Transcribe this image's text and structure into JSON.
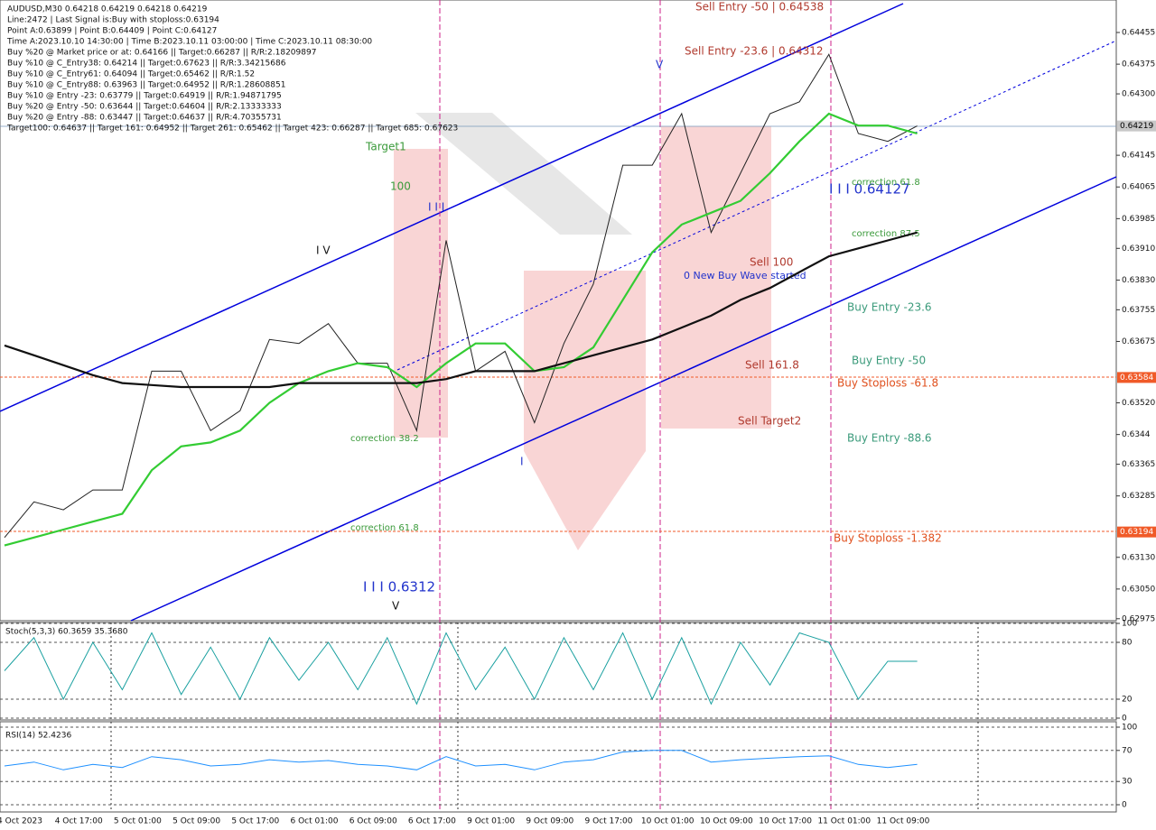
{
  "info_lines": [
    "AUDUSD,M30  0.64218 0.64219 0.64218 0.64219",
    "Line:2472 | Last Signal is:Buy with stoploss:0.63194",
    "Point A:0.63899 | Point B:0.64409 | Point C:0.64127",
    "Time A:2023.10.10 14:30:00 | Time B:2023.10.11 03:00:00 | Time C:2023.10.11 08:30:00",
    "Buy %20 @ Market price or at: 0.64166 || Target:0.66287 || R/R:2.18209897",
    "Buy %10 @ C_Entry38: 0.64214 || Target:0.67623 || R/R:3.34215686",
    "Buy %10 @ C_Entry61: 0.64094 || Target:0.65462 || R/R:1.52",
    "Buy %10 @ C_Entry88: 0.63963 || Target:0.64952 || R/R:1.28608851",
    "Buy %10 @ Entry -23: 0.63779 || Target:0.64919 || R/R:1.94871795",
    "Buy %20 @ Entry -50: 0.63644 || Target:0.64604 || R/R:2.13333333",
    "Buy %20 @ Entry -88: 0.63447 || Target:0.64637 || R/R:4.70355731",
    "Target100: 0.64637 || Target 161: 0.64952 || Target 261: 0.65462 || Target 423: 0.66287 || Target 685: 0.67623"
  ],
  "annotations": [
    "Sell Entry -50 | 0.64538",
    "Sell Entry -23.6 | 0.64312",
    "Target1",
    "100",
    "I I I 0.64127",
    "correction 61.8",
    "correction 87.5",
    "Sell 100",
    "0 New Buy Wave started",
    "Buy Entry -23.6",
    "Buy Entry -50",
    "Sell 161.8",
    "Buy Stoploss -61.8",
    "Sell Target2",
    "Buy Entry -88.6",
    "correction 38.2",
    "correction 61.8",
    "Buy Stoploss -1.382",
    "I I I 0.6312",
    "I V",
    "I I I",
    "V",
    "I",
    "V"
  ],
  "chart_data": [
    {
      "type": "line",
      "categories": [
        "4 Oct 2023",
        null,
        "4 Oct 17:00",
        null,
        "5 Oct 01:00",
        null,
        "5 Oct 09:00",
        null,
        "5 Oct 17:00",
        null,
        "6 Oct 01:00",
        null,
        "6 Oct 09:00",
        null,
        "6 Oct 17:00",
        null,
        "9 Oct 01:00",
        null,
        "9 Oct 09:00",
        null,
        "9 Oct 17:00",
        null,
        "10 Oct 01:00",
        null,
        "10 Oct 09:00",
        null,
        "10 Oct 17:00",
        null,
        "11 Oct 01:00",
        null,
        "11 Oct 09:00",
        null
      ],
      "series": [
        {
          "name": "AUDUSD",
          "color": "#222222",
          "values": [
            0.6318,
            0.6327,
            0.6325,
            0.633,
            0.633,
            0.636,
            0.636,
            0.6345,
            0.635,
            0.6368,
            0.6367,
            0.6372,
            0.6362,
            0.6362,
            0.6345,
            0.6393,
            0.636,
            0.6365,
            0.6347,
            0.6367,
            0.6382,
            0.6412,
            0.6412,
            0.6425,
            0.6395,
            0.641,
            0.6425,
            0.6428,
            0.644,
            0.642,
            0.6418,
            0.64219
          ]
        },
        {
          "name": "MA green",
          "color": "#33cc33",
          "values": [
            0.6316,
            0.6318,
            0.632,
            0.6322,
            0.6324,
            0.6335,
            0.6341,
            0.6342,
            0.6345,
            0.6352,
            0.6357,
            0.636,
            0.6362,
            0.6361,
            0.6356,
            0.6362,
            0.6367,
            0.6367,
            0.636,
            0.6361,
            0.6366,
            0.6378,
            0.639,
            0.6397,
            0.64,
            0.6403,
            0.641,
            0.6418,
            0.6425,
            0.6422,
            0.6422,
            0.642
          ]
        },
        {
          "name": "MA black",
          "color": "#111111",
          "values": [
            0.63665,
            0.6364,
            0.63615,
            0.6359,
            0.6357,
            0.63565,
            0.6356,
            0.6356,
            0.6356,
            0.6356,
            0.6357,
            0.6357,
            0.6357,
            0.6357,
            0.6357,
            0.6358,
            0.636,
            0.636,
            0.636,
            0.6362,
            0.6364,
            0.6366,
            0.6368,
            0.6371,
            0.6374,
            0.6378,
            0.6381,
            0.6385,
            0.6389,
            0.6391,
            0.6393,
            0.6395
          ]
        }
      ],
      "ylim": [
        0.6297,
        0.64537
      ],
      "yticks": [
        0.64455,
        0.64375,
        {
          "value": 0.643,
          "label": "0.64300"
        },
        0.64145,
        0.64065,
        0.63985,
        {
          "value": 0.6391,
          "label": "0.63910"
        },
        {
          "value": 0.6383,
          "label": "0.63830"
        },
        0.63755,
        0.63675,
        {
          "value": 0.6352,
          "label": "0.63520"
        },
        0.6344,
        0.63365,
        0.63285,
        {
          "value": 0.6313,
          "label": "0.63130"
        },
        {
          "value": 0.6305,
          "label": "0.63050"
        },
        0.62975
      ],
      "price_tags": [
        0.64219,
        0.63584,
        0.63194
      ],
      "price_tag_colors": [
        "#c8c8c8",
        "#f05a28",
        "#f05a28"
      ],
      "grid": false
    },
    {
      "type": "line",
      "title": "Stoch(5,3,3) 60.3659 35.3680",
      "series": [
        {
          "name": "Stoch",
          "color": "#1aa0a0",
          "values": [
            50,
            85,
            20,
            80,
            30,
            90,
            25,
            75,
            20,
            85,
            40,
            80,
            30,
            85,
            15,
            90,
            30,
            75,
            20,
            85,
            30,
            90,
            20,
            85,
            15,
            80,
            35,
            90,
            80,
            20,
            60,
            60
          ]
        }
      ],
      "ylim": [
        0,
        100
      ],
      "yticks": [
        0,
        20,
        80,
        100
      ],
      "grid": true
    },
    {
      "type": "line",
      "title": "RSI(14) 52.4236",
      "series": [
        {
          "name": "RSI",
          "color": "#1e90ff",
          "values": [
            50,
            55,
            45,
            52,
            48,
            62,
            58,
            50,
            52,
            58,
            55,
            57,
            52,
            50,
            45,
            62,
            50,
            52,
            45,
            55,
            58,
            68,
            70,
            70,
            55,
            58,
            60,
            62,
            63,
            52,
            48,
            52
          ]
        }
      ],
      "ylim": [
        0,
        100
      ],
      "yticks": [
        0,
        30,
        70,
        100
      ],
      "grid": true
    }
  ]
}
